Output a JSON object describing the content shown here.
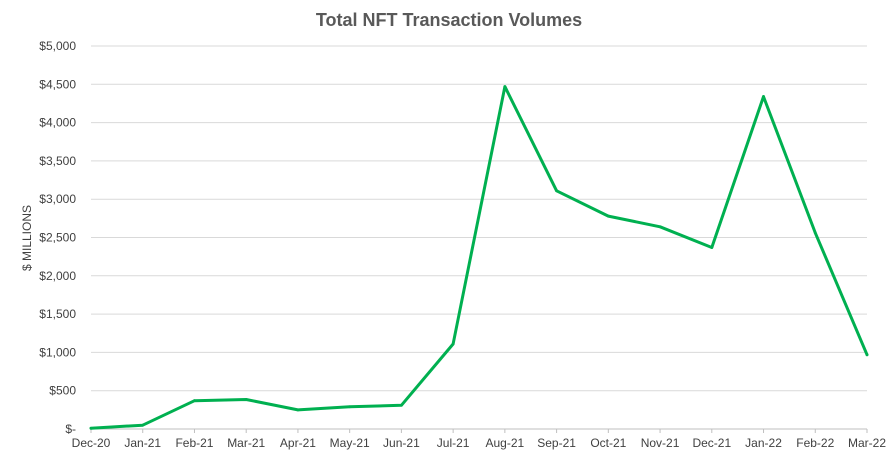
{
  "chart_data": {
    "type": "line",
    "title": "Total NFT Transaction Volumes",
    "xlabel": "",
    "ylabel": "$ MILLIONS",
    "categories": [
      "Dec-20",
      "Jan-21",
      "Feb-21",
      "Mar-21",
      "Apr-21",
      "May-21",
      "Jun-21",
      "Jul-21",
      "Aug-21",
      "Sep-21",
      "Oct-21",
      "Nov-21",
      "Dec-21",
      "Jan-22",
      "Feb-22",
      "Mar-22"
    ],
    "y_tick_labels": [
      "$-",
      "$500",
      "$1,000",
      "$1,500",
      "$2,000",
      "$2,500",
      "$3,000",
      "$3,500",
      "$4,000",
      "$4,500",
      "$5,000"
    ],
    "ylim": [
      0,
      5000
    ],
    "grid": true,
    "legend": "none",
    "series": [
      {
        "color": "#00b050",
        "values": [
          10,
          50,
          370,
          385,
          250,
          290,
          310,
          1110,
          4470,
          3110,
          2780,
          2640,
          2370,
          4340,
          2560,
          970
        ]
      }
    ]
  }
}
